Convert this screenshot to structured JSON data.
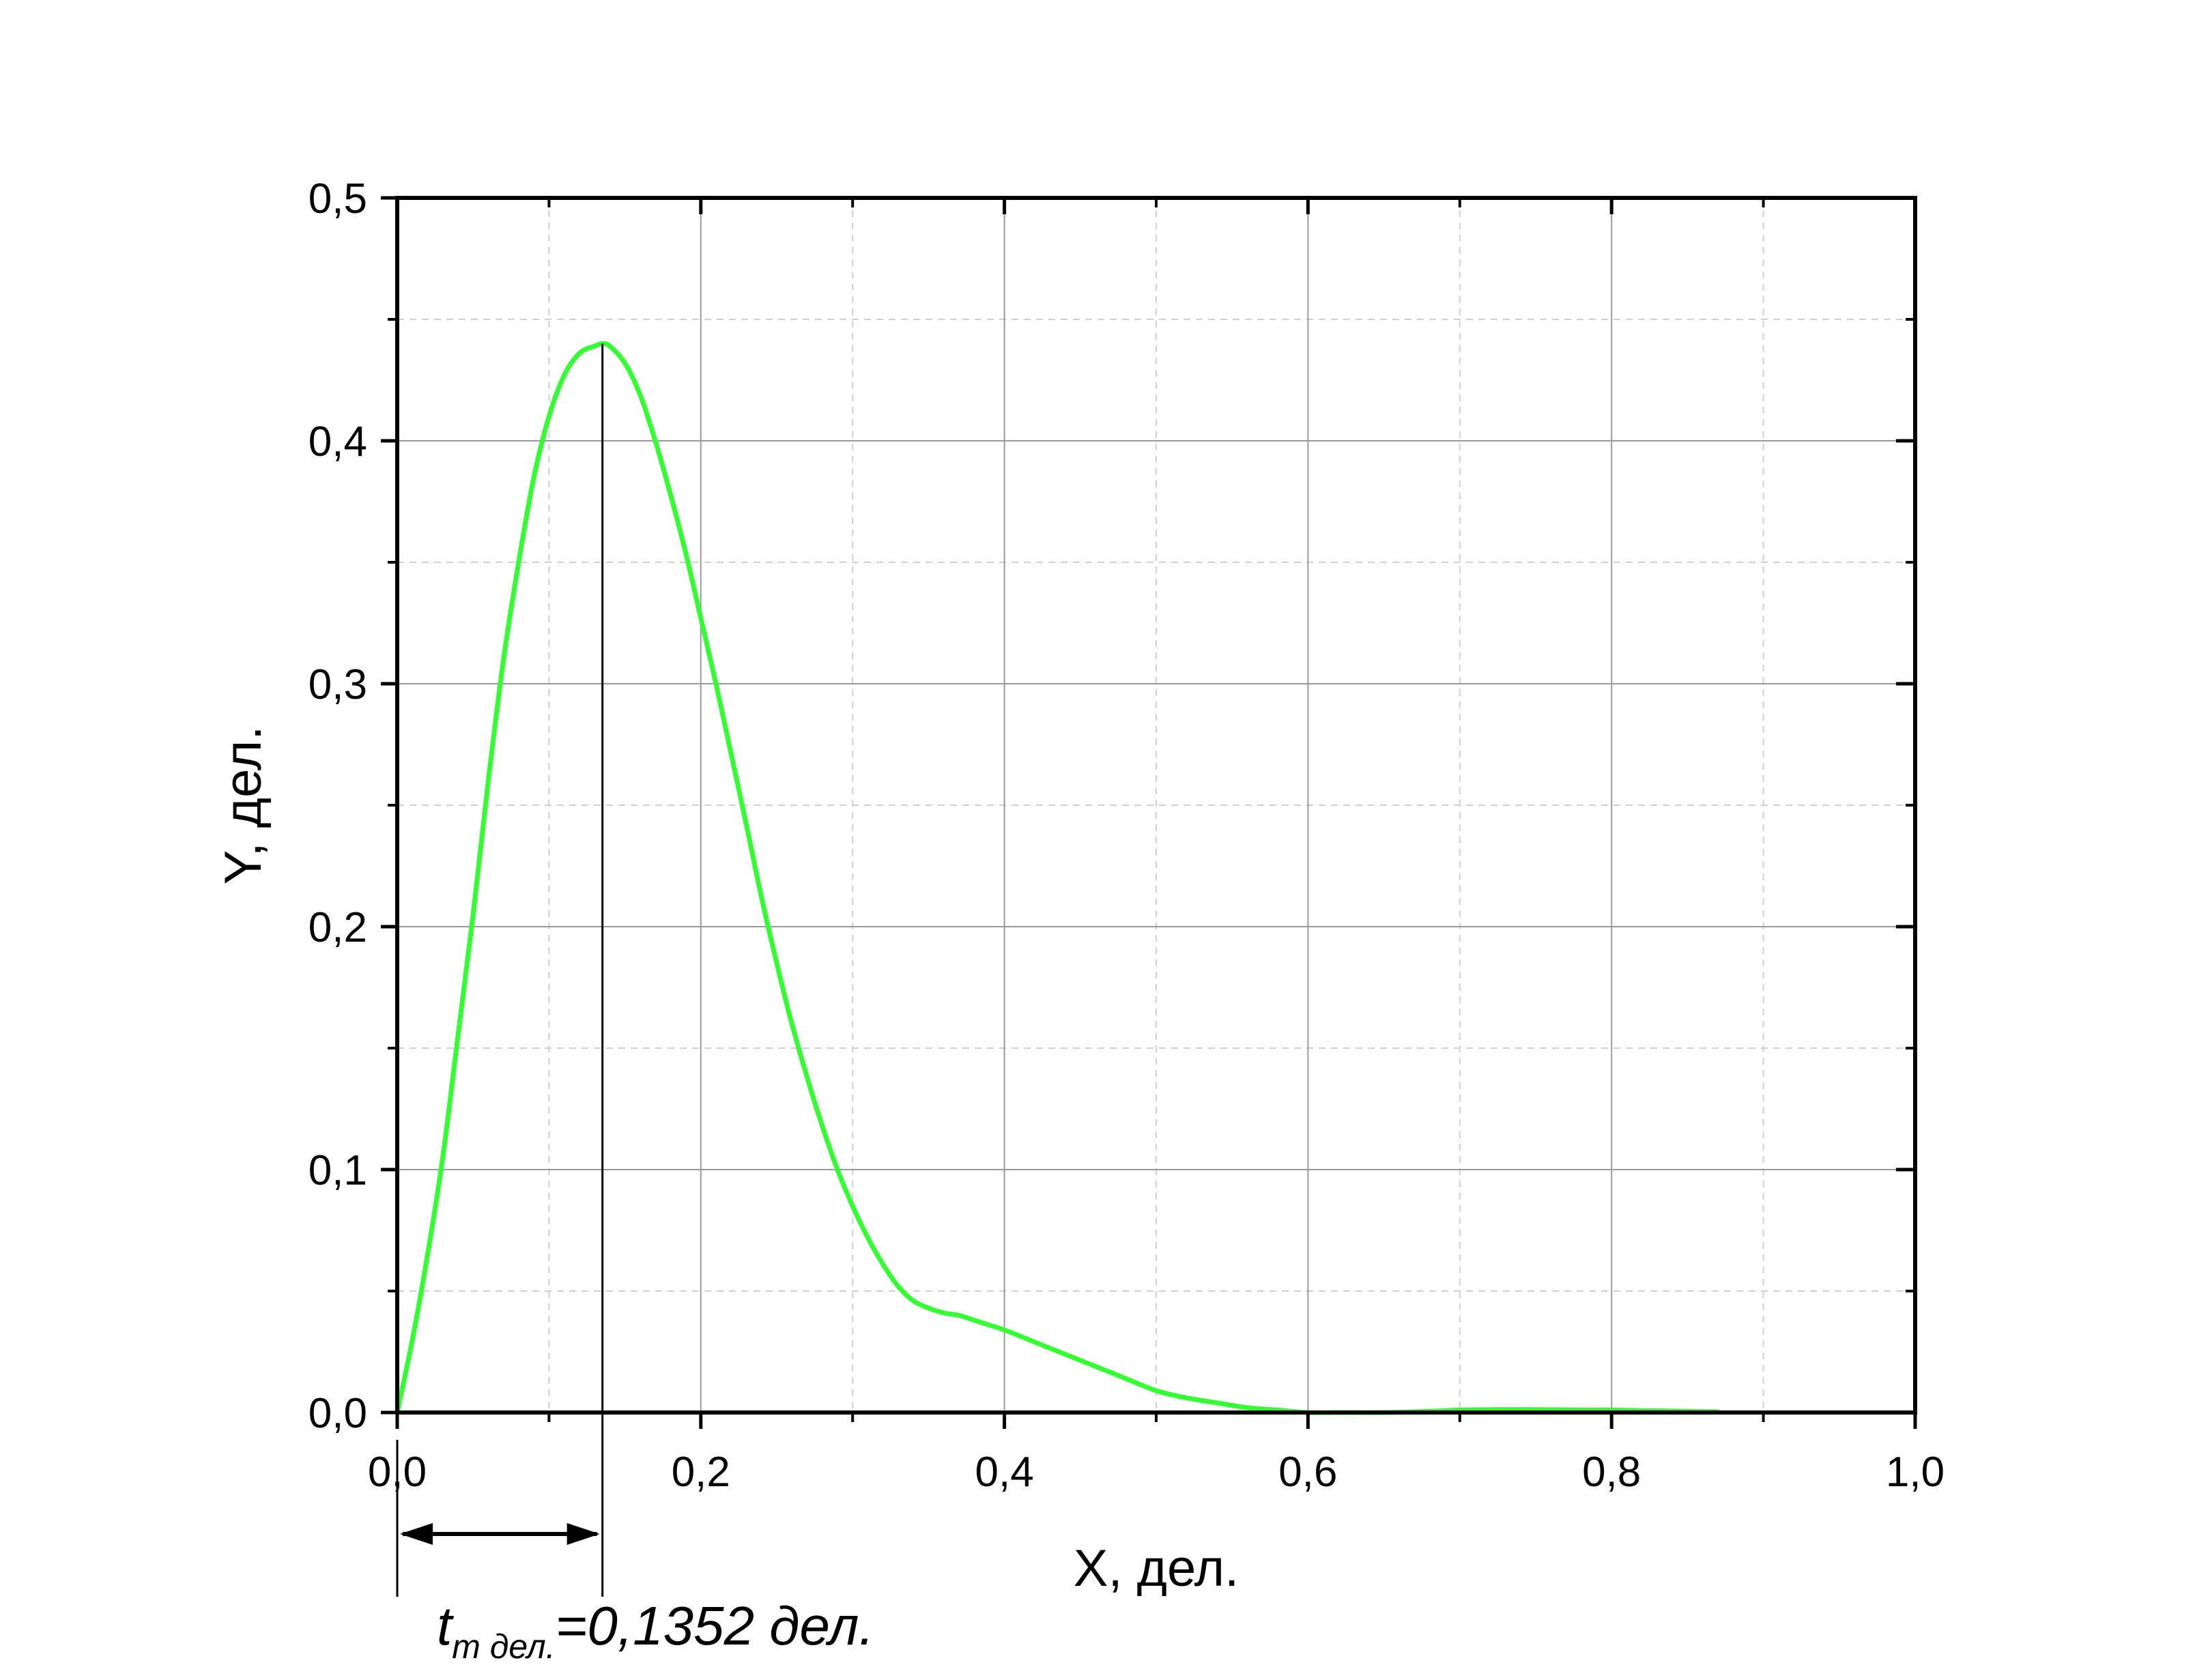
{
  "chart_data": {
    "type": "line",
    "xlabel": "X, дел.",
    "ylabel": "Y, дел.",
    "xlim": [
      0,
      1.0
    ],
    "ylim": [
      0,
      0.5
    ],
    "x_ticks": [
      "0,0",
      "0,2",
      "0,4",
      "0,6",
      "0,8",
      "1,0"
    ],
    "y_ticks": [
      "0,0",
      "0,1",
      "0,2",
      "0,3",
      "0,4",
      "0,5"
    ],
    "grid": true,
    "legend": "none",
    "series": [
      {
        "color": "#33ff33",
        "x": [
          0.0,
          0.01,
          0.02,
          0.03,
          0.04,
          0.05,
          0.06,
          0.07,
          0.08,
          0.09,
          0.1,
          0.11,
          0.12,
          0.13,
          0.135,
          0.14,
          0.15,
          0.16,
          0.17,
          0.18,
          0.19,
          0.2,
          0.21,
          0.22,
          0.23,
          0.24,
          0.25,
          0.26,
          0.27,
          0.28,
          0.29,
          0.3,
          0.31,
          0.32,
          0.33,
          0.34,
          0.35,
          0.36,
          0.37,
          0.38,
          0.39,
          0.4,
          0.42,
          0.44,
          0.46,
          0.48,
          0.5,
          0.52,
          0.54,
          0.56,
          0.58,
          0.6,
          0.62,
          0.65,
          0.68,
          0.7,
          0.72,
          0.75,
          0.78,
          0.8,
          0.82,
          0.85,
          0.87
        ],
        "y": [
          0.0,
          0.03,
          0.065,
          0.105,
          0.155,
          0.205,
          0.26,
          0.31,
          0.35,
          0.385,
          0.41,
          0.427,
          0.436,
          0.439,
          0.44,
          0.439,
          0.432,
          0.419,
          0.4,
          0.378,
          0.354,
          0.327,
          0.3,
          0.271,
          0.242,
          0.212,
          0.185,
          0.16,
          0.138,
          0.118,
          0.1,
          0.085,
          0.072,
          0.061,
          0.052,
          0.046,
          0.043,
          0.041,
          0.04,
          0.038,
          0.036,
          0.034,
          0.029,
          0.024,
          0.019,
          0.014,
          0.009,
          0.006,
          0.004,
          0.002,
          0.001,
          0.0,
          0.0,
          0.0,
          0.0005,
          0.001,
          0.0012,
          0.0012,
          0.001,
          0.001,
          0.0008,
          0.0005,
          0.0003
        ]
      }
    ],
    "peak_x": 0.1352,
    "annotation": {
      "main": "t",
      "subscript": "m дел.",
      "rest": "=0,1352 дел."
    }
  }
}
